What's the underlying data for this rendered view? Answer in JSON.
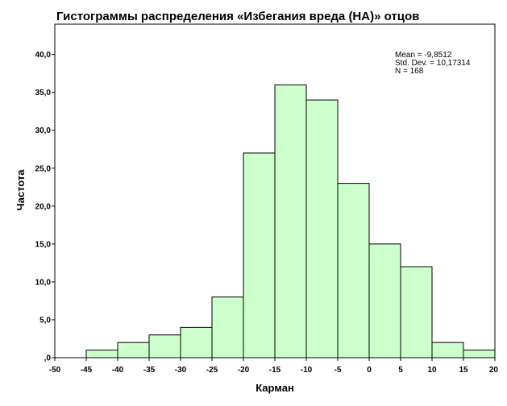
{
  "chart_data": {
    "type": "bar",
    "title": "Гистограммы распределения «Избегания вреда (НА)» отцов",
    "xlabel": "Карман",
    "ylabel": "Частота",
    "xlim": [
      -50,
      20
    ],
    "ylim": [
      0,
      44
    ],
    "x_ticks": [
      "-50",
      "-45",
      "-40",
      "-35",
      "-30",
      "-25",
      "-20",
      "-15",
      "-10",
      "-5",
      "0",
      "5",
      "10",
      "15",
      "20"
    ],
    "x_tick_values": [
      -50,
      -45,
      -40,
      -35,
      -30,
      -25,
      -20,
      -15,
      -10,
      -5,
      0,
      5,
      10,
      15,
      20
    ],
    "y_ticks": [
      ",0",
      "5,0",
      "10,0",
      "15,0",
      "20,0",
      "25,0",
      "30,0",
      "35,0",
      "40,0"
    ],
    "y_tick_values": [
      0,
      5,
      10,
      15,
      20,
      25,
      30,
      35,
      40
    ],
    "bins": [
      {
        "from": -45,
        "to": -40,
        "value": 1
      },
      {
        "from": -40,
        "to": -35,
        "value": 2
      },
      {
        "from": -35,
        "to": -30,
        "value": 3
      },
      {
        "from": -30,
        "to": -25,
        "value": 4
      },
      {
        "from": -25,
        "to": -20,
        "value": 8
      },
      {
        "from": -20,
        "to": -15,
        "value": 27
      },
      {
        "from": -15,
        "to": -10,
        "value": 36
      },
      {
        "from": -10,
        "to": -5,
        "value": 34
      },
      {
        "from": -5,
        "to": 0,
        "value": 23
      },
      {
        "from": 0,
        "to": 5,
        "value": 15
      },
      {
        "from": 5,
        "to": 10,
        "value": 12
      },
      {
        "from": 10,
        "to": 15,
        "value": 2
      },
      {
        "from": 15,
        "to": 20,
        "value": 1
      }
    ],
    "bar_color": "#ccffcc",
    "grid": false,
    "stats": {
      "mean": "Mean = -9,8512",
      "std": "Std. Dev. = 10,17314",
      "n": "N = 168"
    }
  }
}
